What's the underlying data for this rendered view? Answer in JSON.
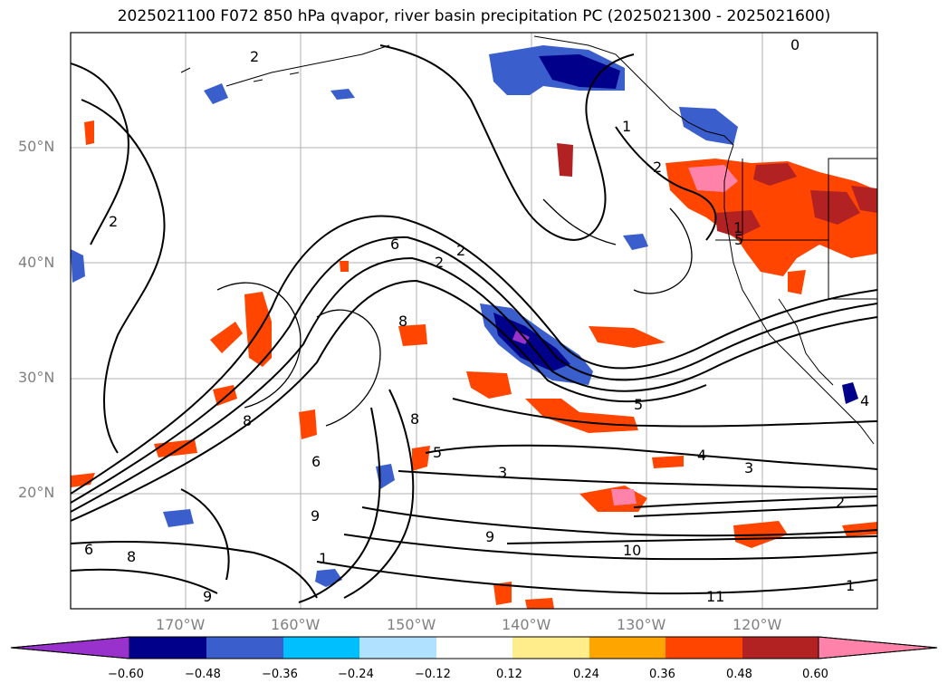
{
  "figure": {
    "title": "2025021100 F072 850 hPa qvapor, river basin precipitation PC (2025021300 - 2025021600)"
  },
  "map": {
    "projection": "plate-carree",
    "lon_range": [
      -180,
      -110
    ],
    "lat_range": [
      10,
      60
    ],
    "gridlines": true,
    "lat_labels": [
      "50°N",
      "40°N",
      "30°N",
      "20°N"
    ],
    "lon_labels": [
      "170°W",
      "160°W",
      "150°W",
      "140°W",
      "130°W",
      "120°W"
    ],
    "contour_variable": "850 hPa qvapor",
    "contour_labels": [
      "0",
      "2",
      "2",
      "2",
      "2",
      "2",
      "1",
      "1",
      "6",
      "8",
      "8",
      "8",
      "6",
      "5",
      "4",
      "3",
      "2",
      "5",
      "9",
      "9",
      "10",
      "11",
      "1",
      "4",
      "1",
      "6",
      "8",
      "9",
      "3",
      "5"
    ],
    "filled_variable": "river basin precipitation PC"
  },
  "colorbar": {
    "ticks": [
      "−0.60",
      "−0.48",
      "−0.36",
      "−0.24",
      "−0.12",
      "0.12",
      "0.24",
      "0.36",
      "0.48",
      "0.60"
    ],
    "colors": [
      "#9932cc",
      "#00008b",
      "#3a5fcd",
      "#00bfff",
      "#b0e2ff",
      "#ffffff",
      "#ffec8b",
      "#ffa500",
      "#ff4500",
      "#b22222",
      "#ff82ab"
    ],
    "extend": "both"
  },
  "chart_data": {
    "type": "contour-map",
    "title": "2025021100 F072 850 hPa qvapor, river basin precipitation PC (2025021300 - 2025021600)",
    "xlabel": "",
    "ylabel": "",
    "xlim": [
      -180,
      -110
    ],
    "ylim": [
      10,
      60
    ],
    "grid": true,
    "colorbar_levels": [
      -0.6,
      -0.48,
      -0.36,
      -0.24,
      -0.12,
      0.12,
      0.24,
      0.36,
      0.48,
      0.6
    ]
  }
}
